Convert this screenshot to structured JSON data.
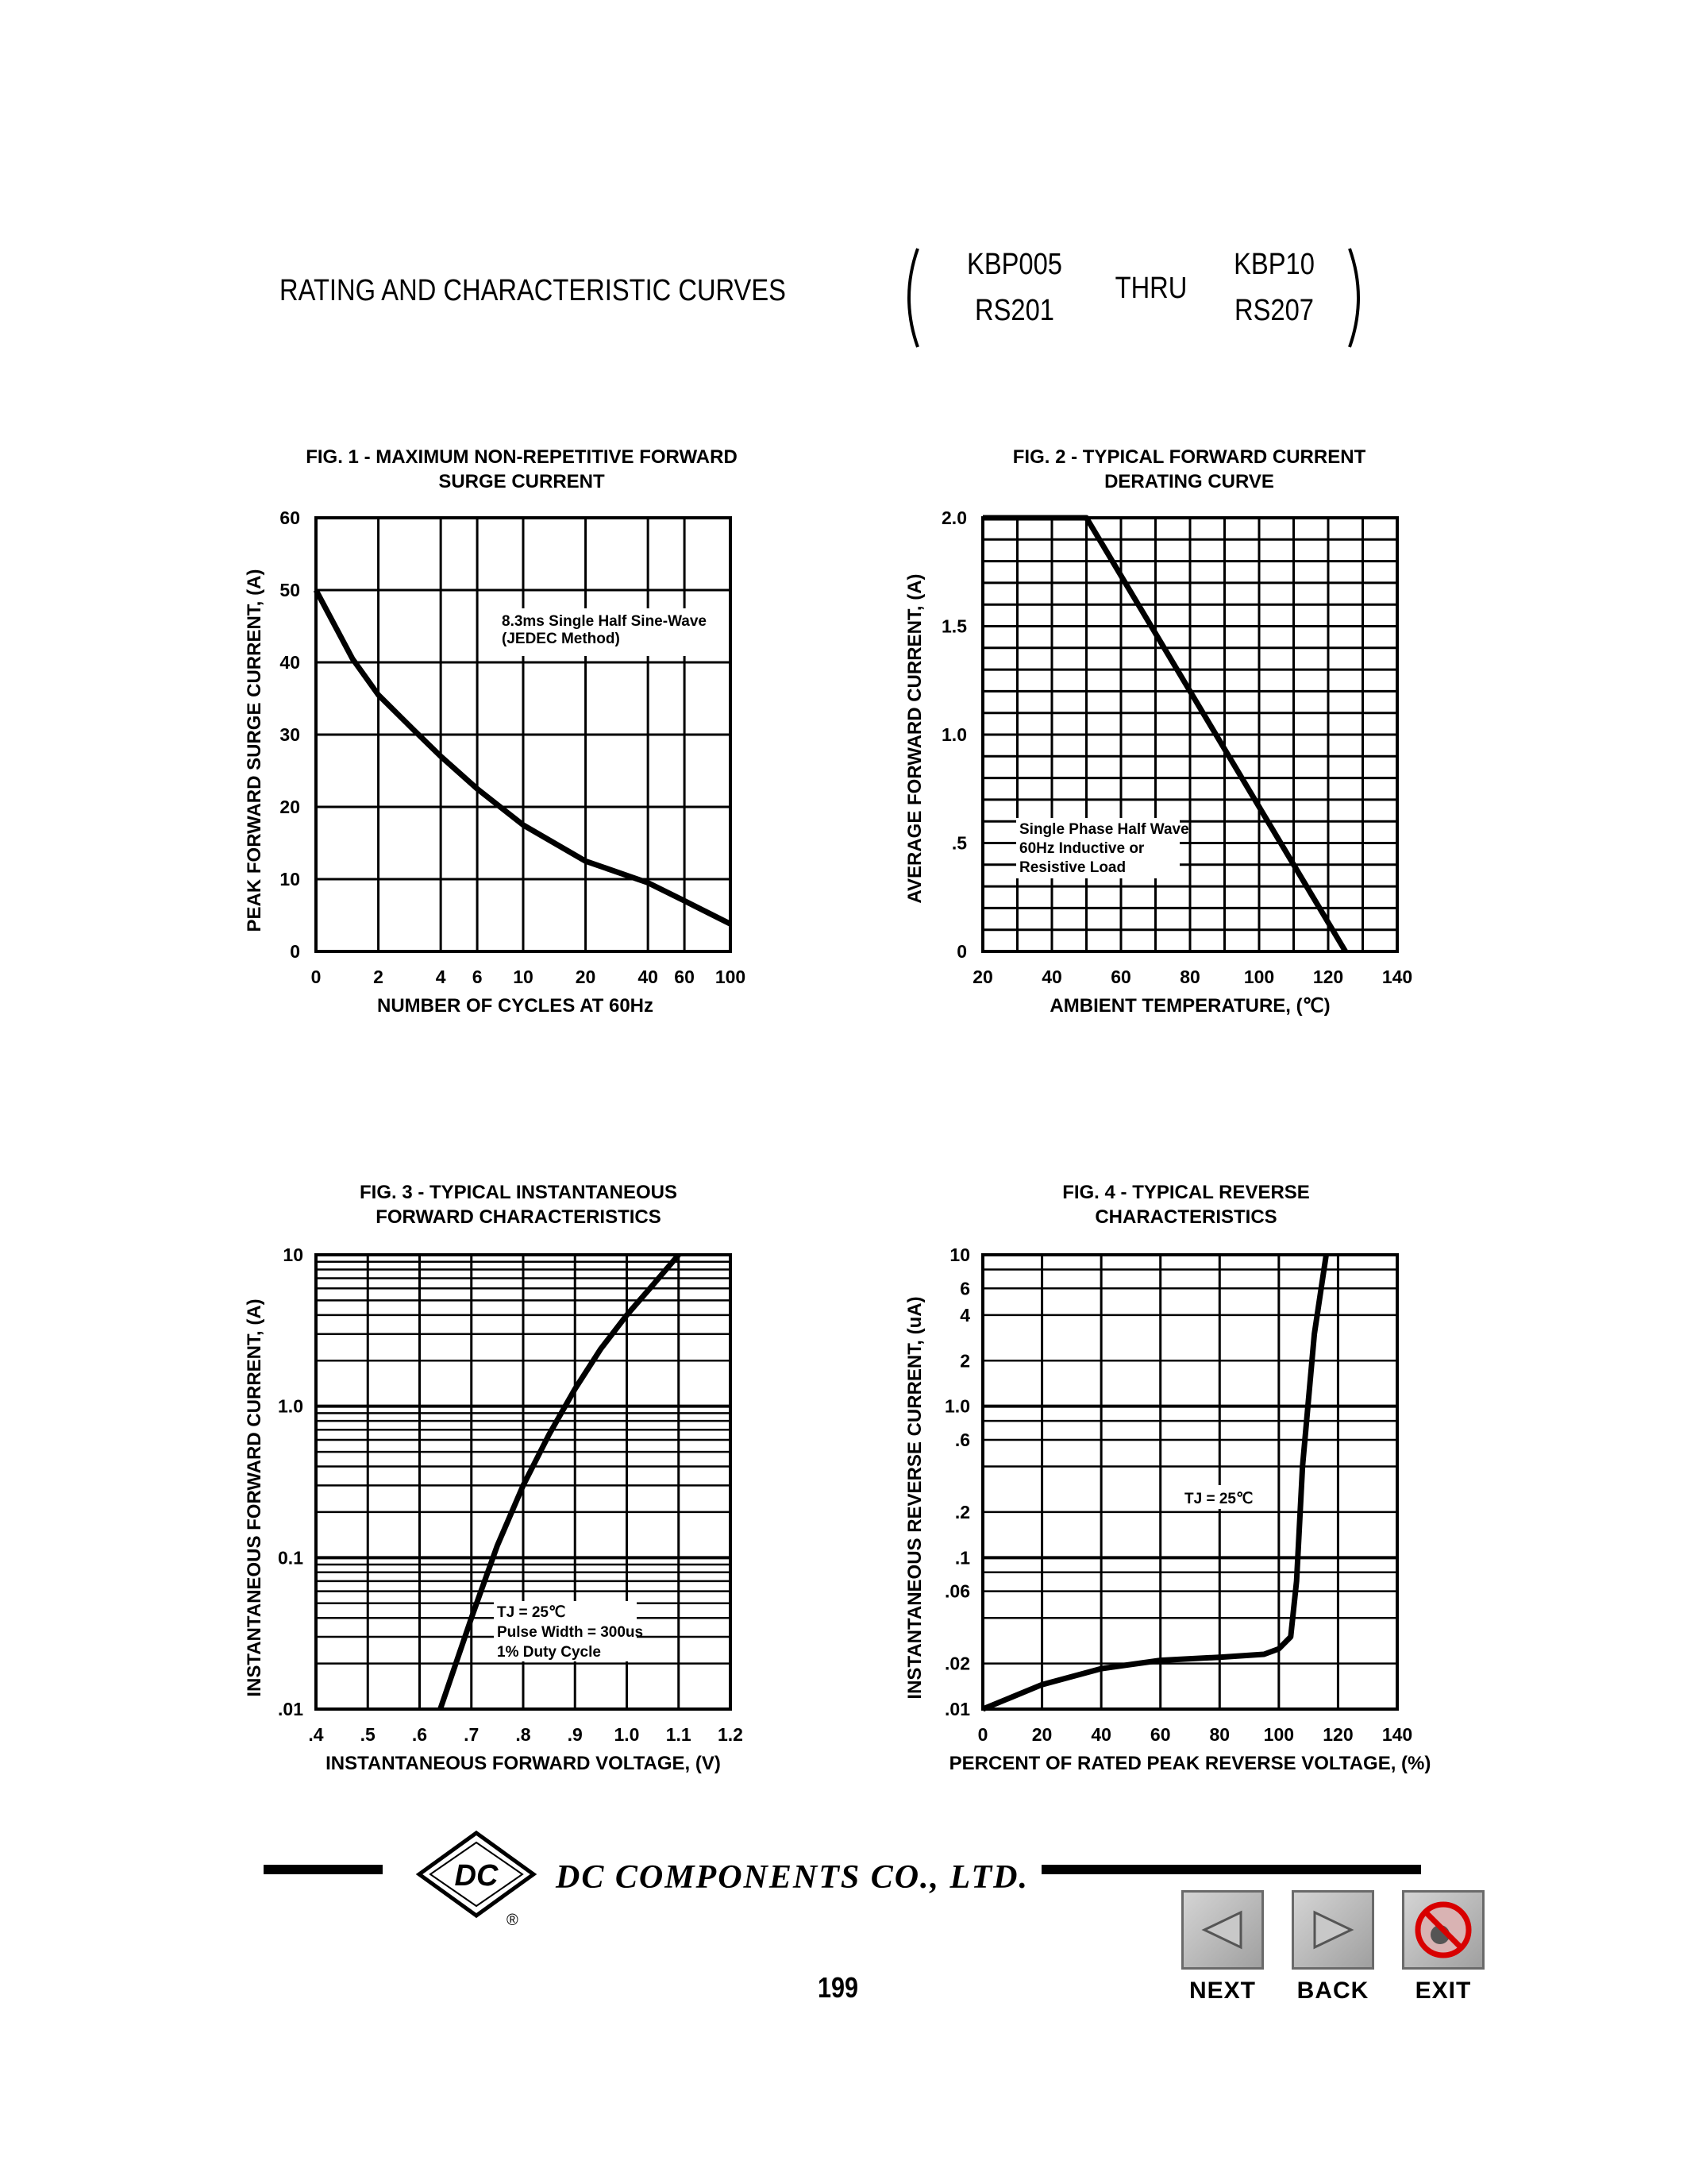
{
  "header": {
    "title": "RATING AND CHARACTERISTIC CURVES",
    "part_top_left": "KBP005",
    "part_bottom_left": "RS201",
    "thru": "THRU",
    "part_top_right": "KBP10",
    "part_bottom_right": "RS207"
  },
  "footer": {
    "company": "DC COMPONENTS CO.,   LTD.",
    "logo_text": "DC",
    "registered": "®",
    "page_number": "199",
    "nav": {
      "next": "NEXT",
      "back": "BACK",
      "exit": "EXIT"
    }
  },
  "chart_data": [
    {
      "id": "fig1",
      "type": "line",
      "title": "FIG. 1 - MAXIMUM NON-REPETITIVE FORWARD",
      "subtitle": "SURGE CURRENT",
      "xlabel": "NUMBER OF CYCLES AT 60Hz",
      "ylabel": "PEAK FORWARD SURGE CURRENT, (A)",
      "x_scale": "log",
      "xlim": [
        1,
        100
      ],
      "ylim": [
        0,
        60
      ],
      "x_tick_labels": [
        "0",
        "2",
        "4",
        "6",
        "10",
        "20",
        "40",
        "60",
        "100"
      ],
      "y_tick_labels": [
        "0",
        "10",
        "20",
        "30",
        "40",
        "50",
        "60"
      ],
      "y_ticks": [
        0,
        10,
        20,
        30,
        40,
        50,
        60
      ],
      "annotation": [
        "8.3ms Single Half Sine-Wave",
        "(JEDEC Method)"
      ],
      "grid": true,
      "series": [
        {
          "x": [
            1,
            1.5,
            2,
            3,
            4,
            6,
            10,
            20,
            40,
            60,
            100
          ],
          "y": [
            50,
            40.5,
            35.5,
            30.5,
            27,
            22.5,
            17.5,
            12.5,
            9.5,
            7,
            3.8
          ]
        }
      ]
    },
    {
      "id": "fig2",
      "type": "line",
      "title": "FIG. 2 - TYPICAL FORWARD CURRENT",
      "subtitle": "DERATING CURVE",
      "xlabel": "AMBIENT TEMPERATURE, (℃)",
      "ylabel": "AVERAGE FORWARD CURRENT, (A)",
      "xlim": [
        20,
        140
      ],
      "ylim": [
        0,
        2.0
      ],
      "x_tick_labels": [
        "20",
        "40",
        "60",
        "80",
        "100",
        "120",
        "140"
      ],
      "x_ticks": [
        20,
        40,
        60,
        80,
        100,
        120,
        140
      ],
      "y_tick_labels": [
        "0",
        ".5",
        "1.0",
        "1.5",
        "2.0"
      ],
      "y_ticks": [
        0,
        0.5,
        1.0,
        1.5,
        2.0
      ],
      "annotation": [
        "Single Phase Half Wave",
        "60Hz Inductive or",
        "Resistive Load"
      ],
      "grid": true,
      "series": [
        {
          "x": [
            20,
            50,
            125
          ],
          "y": [
            2.0,
            2.0,
            0
          ]
        }
      ]
    },
    {
      "id": "fig3",
      "type": "line",
      "title": "FIG. 3 - TYPICAL INSTANTANEOUS",
      "subtitle": "FORWARD CHARACTERISTICS",
      "xlabel": "INSTANTANEOUS FORWARD VOLTAGE, (V)",
      "ylabel": "INSTANTANEOUS FORWARD CURRENT, (A)",
      "y_scale": "log",
      "xlim": [
        0.4,
        1.2
      ],
      "ylim": [
        0.01,
        10
      ],
      "x_tick_labels": [
        ".4",
        ".5",
        ".6",
        ".7",
        ".8",
        ".9",
        "1.0",
        "1.1",
        "1.2"
      ],
      "x_ticks": [
        0.4,
        0.5,
        0.6,
        0.7,
        0.8,
        0.9,
        1.0,
        1.1,
        1.2
      ],
      "y_tick_labels": [
        ".01",
        "0.1",
        "1.0",
        "10"
      ],
      "y_ticks": [
        0.01,
        0.1,
        1.0,
        10
      ],
      "annotation": [
        "TJ = 25℃",
        "Pulse Width = 300us",
        "1% Duty Cycle"
      ],
      "grid": true,
      "series": [
        {
          "x": [
            0.64,
            0.7,
            0.75,
            0.8,
            0.85,
            0.9,
            0.95,
            1.0,
            1.05,
            1.1
          ],
          "y": [
            0.01,
            0.04,
            0.12,
            0.3,
            0.65,
            1.3,
            2.4,
            4.0,
            6.3,
            10
          ]
        }
      ]
    },
    {
      "id": "fig4",
      "type": "line",
      "title": "FIG. 4 - TYPICAL REVERSE",
      "subtitle": "CHARACTERISTICS",
      "xlabel": "PERCENT OF RATED PEAK REVERSE VOLTAGE, (%)",
      "ylabel": "INSTANTANEOUS REVERSE CURRENT, (uA)",
      "y_scale": "log",
      "xlim": [
        0,
        140
      ],
      "ylim": [
        0.01,
        10
      ],
      "x_tick_labels": [
        "0",
        "20",
        "40",
        "60",
        "80",
        "100",
        "120",
        "140"
      ],
      "x_ticks": [
        0,
        20,
        40,
        60,
        80,
        100,
        120,
        140
      ],
      "y_tick_labels": [
        ".01",
        ".02",
        ".06",
        ".1",
        ".2",
        ".6",
        "1.0",
        "2",
        "4",
        "6",
        "10"
      ],
      "y_ticks": [
        0.01,
        0.02,
        0.06,
        0.1,
        0.2,
        0.6,
        1.0,
        2,
        4,
        6,
        10
      ],
      "annotation": [
        "TJ = 25℃"
      ],
      "grid": true,
      "series": [
        {
          "x": [
            0,
            20,
            40,
            60,
            80,
            95,
            100,
            104,
            106,
            108,
            112,
            116
          ],
          "y": [
            0.01,
            0.0145,
            0.0185,
            0.021,
            0.022,
            0.023,
            0.025,
            0.03,
            0.07,
            0.4,
            3,
            10
          ]
        }
      ]
    }
  ]
}
